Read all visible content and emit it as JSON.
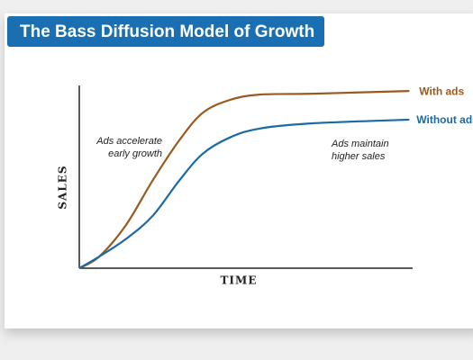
{
  "chart_data": {
    "type": "line",
    "title": "The Bass Diffusion Model of Growth",
    "xlabel": "TIME",
    "ylabel": "SALES",
    "xlim": [
      0,
      100
    ],
    "ylim": [
      0,
      100
    ],
    "x": [
      0,
      6,
      14,
      22,
      30,
      37,
      45,
      54,
      70,
      99
    ],
    "series": [
      {
        "name": "With ads",
        "color": "#9a5a1e",
        "values": [
          0,
          6.4,
          23.6,
          48,
          70,
          85,
          92,
          95,
          95.5,
          97
        ]
      },
      {
        "name": "Without ads",
        "color": "#1a6aa5",
        "values": [
          0,
          6.4,
          16,
          28.6,
          48,
          62.6,
          71.4,
          76.4,
          79.3,
          81.3
        ]
      }
    ],
    "annotations": [
      [
        "Ads accelerate",
        "early growth"
      ],
      [
        "Ads maintain",
        "higher sales"
      ]
    ]
  }
}
